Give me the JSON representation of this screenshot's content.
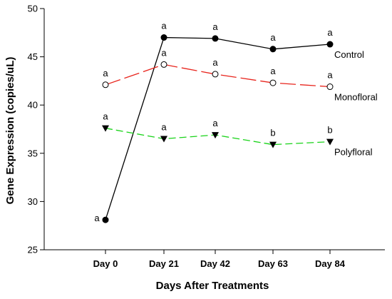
{
  "chart_data": {
    "type": "line",
    "title": "",
    "xlabel": "Days After Treatments",
    "ylabel": "Gene Expression (copies/uL)",
    "categories": [
      "Day 0",
      "Day 21",
      "Day 42",
      "Day 63",
      "Day 84"
    ],
    "ylim": [
      25,
      50
    ],
    "yticks": [
      25,
      30,
      35,
      40,
      45,
      50
    ],
    "grid": false,
    "legend": "inline labels at right end of each line",
    "series": [
      {
        "name": "Control",
        "values": [
          28.1,
          47.0,
          46.9,
          45.8,
          46.3
        ],
        "significance": [
          "a",
          "a",
          "a",
          "a",
          "a"
        ],
        "color": "#000000",
        "dash": "solid",
        "marker": "filled-circle"
      },
      {
        "name": "Monofloral",
        "values": [
          42.1,
          44.2,
          43.2,
          42.3,
          41.9
        ],
        "significance": [
          "a",
          "a",
          "a",
          "a",
          "a"
        ],
        "color": "#e8241c",
        "dash": "long-dash",
        "marker": "open-circle"
      },
      {
        "name": "Polyfloral",
        "values": [
          37.6,
          36.5,
          36.9,
          35.9,
          36.2
        ],
        "significance": [
          "a",
          "a",
          "a",
          "b",
          "b"
        ],
        "color": "#19d319",
        "dash": "dash",
        "marker": "filled-triangle-down"
      }
    ]
  }
}
